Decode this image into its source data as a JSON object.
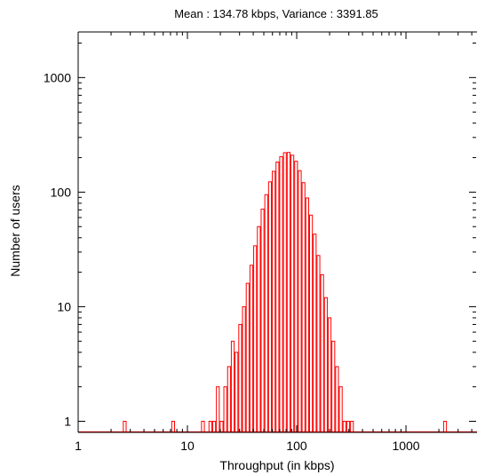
{
  "chart_data": {
    "type": "bar",
    "title": "Mean : 134.78 kbps, Variance : 3391.85",
    "xlabel": "Throughput (in kbps)",
    "ylabel": "Number of users",
    "x_scale": "log",
    "y_scale": "log",
    "xlim": [
      1,
      4467
    ],
    "ylim": [
      0.8,
      2500
    ],
    "x_ticks": [
      {
        "value": 1,
        "label": "1"
      },
      {
        "value": 10,
        "label": "10"
      },
      {
        "value": 100,
        "label": "100"
      },
      {
        "value": 1000,
        "label": "1000"
      }
    ],
    "y_ticks": [
      {
        "value": 1,
        "label": "1"
      },
      {
        "value": 10,
        "label": "10"
      },
      {
        "value": 100,
        "label": "100"
      },
      {
        "value": 1000,
        "label": "1000"
      }
    ],
    "bin_edges": [
      1,
      1.0817,
      1.17,
      1.2656,
      1.3689,
      1.4807,
      1.6016,
      1.7324,
      1.8738,
      2.0268,
      2.1923,
      2.3713,
      2.5649,
      2.7743,
      3.0008,
      3.2459,
      3.5109,
      3.7975,
      4.1077,
      4.443,
      4.8058,
      5.1982,
      5.6226,
      6.0817,
      6.5783,
      7.1154,
      7.6964,
      8.3248,
      9.0045,
      9.7397,
      10.535,
      11.395,
      12.326,
      13.332,
      14.421,
      15.598,
      16.872,
      18.249,
      19.739,
      21.351,
      23.095,
      24.98,
      27.02,
      29.226,
      31.612,
      34.194,
      36.986,
      40.006,
      43.272,
      46.805,
      50.627,
      54.761,
      59.232,
      64.068,
      69.299,
      74.958,
      81.078,
      87.698,
      94.859,
      102.6,
      110.98,
      120.04,
      129.84,
      140.45,
      151.91,
      164.32,
      177.73,
      192.25,
      207.95,
      224.93,
      243.29,
      263.16,
      284.65,
      307.89,
      333.03,
      360.22,
      389.63,
      421.44,
      455.85,
      493.08,
      533.33,
      576.88,
      624.0,
      674.95,
      730.06,
      789.67,
      854.14,
      923.88,
      999.32,
      1080.9,
      1169.2,
      1264.7,
      1367.9,
      1479.6,
      1600.4,
      1731.1,
      1872.5,
      2025.4,
      2190.7,
      2369.6,
      2563.1,
      2772.4,
      2998.8,
      3243.6
    ],
    "values": [
      0,
      0,
      0,
      0,
      0,
      0,
      0,
      0,
      0,
      0,
      0,
      0,
      1,
      0,
      0,
      0,
      0,
      0,
      0,
      0,
      0,
      0,
      0,
      0,
      0,
      1,
      0,
      0,
      0,
      0,
      0,
      0,
      0,
      1,
      0,
      1,
      1,
      2,
      1,
      2,
      3,
      5,
      4,
      7,
      10,
      16,
      23,
      34,
      50,
      71,
      95,
      123,
      152,
      183,
      204,
      221,
      222,
      210,
      186,
      154,
      121,
      89,
      63,
      43,
      28,
      19,
      12,
      8,
      5,
      3,
      2,
      1,
      1,
      1,
      0,
      0,
      0,
      0,
      0,
      0,
      0,
      0,
      0,
      0,
      0,
      0,
      0,
      0,
      0,
      0,
      0,
      0,
      0,
      0,
      0,
      0,
      0,
      0,
      1,
      0,
      0,
      0,
      0
    ],
    "colors": {
      "bars": "#ff0000",
      "axes": "#000000"
    },
    "grid": false,
    "legend": "none"
  }
}
